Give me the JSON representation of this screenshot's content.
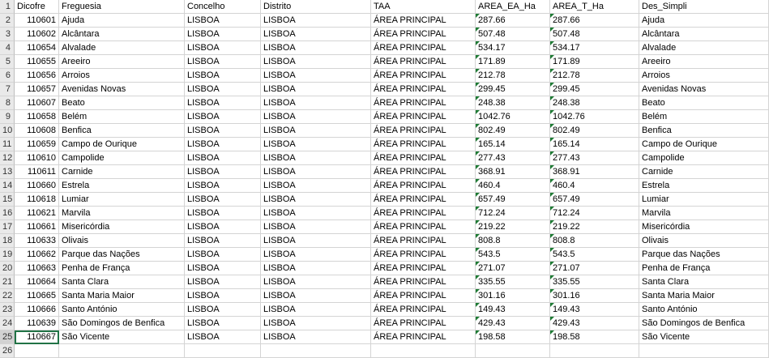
{
  "sheet": {
    "columns": [
      "Dicofre",
      "Freguesia",
      "Concelho",
      "Distrito",
      "TAA",
      "AREA_EA_Ha",
      "AREA_T_Ha",
      "Des_Simpli"
    ],
    "rows": [
      [
        "110601",
        "Ajuda",
        "LISBOA",
        "LISBOA",
        "ÁREA PRINCIPAL",
        "287.66",
        "287.66",
        "Ajuda"
      ],
      [
        "110602",
        "Alcântara",
        "LISBOA",
        "LISBOA",
        "ÁREA PRINCIPAL",
        "507.48",
        "507.48",
        "Alcântara"
      ],
      [
        "110654",
        "Alvalade",
        "LISBOA",
        "LISBOA",
        "ÁREA PRINCIPAL",
        "534.17",
        "534.17",
        "Alvalade"
      ],
      [
        "110655",
        "Areeiro",
        "LISBOA",
        "LISBOA",
        "ÁREA PRINCIPAL",
        "171.89",
        "171.89",
        "Areeiro"
      ],
      [
        "110656",
        "Arroios",
        "LISBOA",
        "LISBOA",
        "ÁREA PRINCIPAL",
        "212.78",
        "212.78",
        "Arroios"
      ],
      [
        "110657",
        "Avenidas Novas",
        "LISBOA",
        "LISBOA",
        "ÁREA PRINCIPAL",
        "299.45",
        "299.45",
        "Avenidas Novas"
      ],
      [
        "110607",
        "Beato",
        "LISBOA",
        "LISBOA",
        "ÁREA PRINCIPAL",
        "248.38",
        "248.38",
        "Beato"
      ],
      [
        "110658",
        "Belém",
        "LISBOA",
        "LISBOA",
        "ÁREA PRINCIPAL",
        "1042.76",
        "1042.76",
        "Belém"
      ],
      [
        "110608",
        "Benfica",
        "LISBOA",
        "LISBOA",
        "ÁREA PRINCIPAL",
        "802.49",
        "802.49",
        "Benfica"
      ],
      [
        "110659",
        "Campo de Ourique",
        "LISBOA",
        "LISBOA",
        "ÁREA PRINCIPAL",
        "165.14",
        "165.14",
        "Campo de Ourique"
      ],
      [
        "110610",
        "Campolide",
        "LISBOA",
        "LISBOA",
        "ÁREA PRINCIPAL",
        "277.43",
        "277.43",
        "Campolide"
      ],
      [
        "110611",
        "Carnide",
        "LISBOA",
        "LISBOA",
        "ÁREA PRINCIPAL",
        "368.91",
        "368.91",
        "Carnide"
      ],
      [
        "110660",
        "Estrela",
        "LISBOA",
        "LISBOA",
        "ÁREA PRINCIPAL",
        "460.4",
        "460.4",
        "Estrela"
      ],
      [
        "110618",
        "Lumiar",
        "LISBOA",
        "LISBOA",
        "ÁREA PRINCIPAL",
        "657.49",
        "657.49",
        "Lumiar"
      ],
      [
        "110621",
        "Marvila",
        "LISBOA",
        "LISBOA",
        "ÁREA PRINCIPAL",
        "712.24",
        "712.24",
        "Marvila"
      ],
      [
        "110661",
        "Misericórdia",
        "LISBOA",
        "LISBOA",
        "ÁREA PRINCIPAL",
        "219.22",
        "219.22",
        "Misericórdia"
      ],
      [
        "110633",
        "Olivais",
        "LISBOA",
        "LISBOA",
        "ÁREA PRINCIPAL",
        "808.8",
        "808.8",
        "Olivais"
      ],
      [
        "110662",
        "Parque das Nações",
        "LISBOA",
        "LISBOA",
        "ÁREA PRINCIPAL",
        "543.5",
        "543.5",
        "Parque das Nações"
      ],
      [
        "110663",
        "Penha de França",
        "LISBOA",
        "LISBOA",
        "ÁREA PRINCIPAL",
        "271.07",
        "271.07",
        "Penha de França"
      ],
      [
        "110664",
        "Santa Clara",
        "LISBOA",
        "LISBOA",
        "ÁREA PRINCIPAL",
        "335.55",
        "335.55",
        "Santa Clara"
      ],
      [
        "110665",
        "Santa Maria Maior",
        "LISBOA",
        "LISBOA",
        "ÁREA PRINCIPAL",
        "301.16",
        "301.16",
        "Santa Maria Maior"
      ],
      [
        "110666",
        "Santo António",
        "LISBOA",
        "LISBOA",
        "ÁREA PRINCIPAL",
        "149.43",
        "149.43",
        "Santo António"
      ],
      [
        "110639",
        "São Domingos de Benfica",
        "LISBOA",
        "LISBOA",
        "ÁREA PRINCIPAL",
        "429.43",
        "429.43",
        "São Domingos de Benfica"
      ],
      [
        "110667",
        "São Vicente",
        "LISBOA",
        "LISBOA",
        "ÁREA PRINCIPAL",
        "198.58",
        "198.58",
        "São Vicente"
      ]
    ],
    "row_numbers": [
      "1",
      "2",
      "3",
      "4",
      "5",
      "6",
      "7",
      "8",
      "9",
      "10",
      "11",
      "12",
      "13",
      "14",
      "15",
      "16",
      "17",
      "18",
      "19",
      "20",
      "21",
      "22",
      "23",
      "24",
      "25",
      "26"
    ],
    "selected_cell": "A25",
    "number_as_text_indicator_color": "#1e7b34",
    "selection_color": "#217346"
  }
}
